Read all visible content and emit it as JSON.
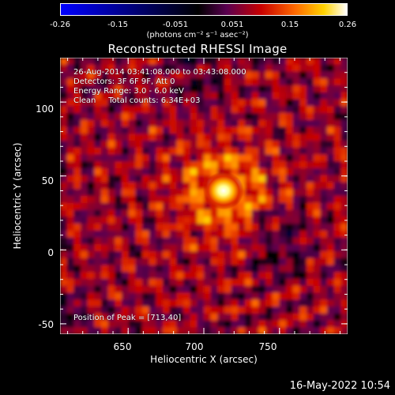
{
  "colorbar": {
    "ticks": [
      "-0.26",
      "-0.15",
      "-0.051",
      "0.051",
      "0.15",
      "0.26"
    ],
    "unit_label": "(photons cm⁻² s⁻¹ asec⁻²)",
    "colormap": [
      "#0000ff",
      "#000000",
      "#5a0050",
      "#c80000",
      "#ff6a00",
      "#ffd200",
      "#ffffff"
    ]
  },
  "chart_data": {
    "type": "heatmap",
    "title": "Reconstructed RHESSI Image",
    "xlabel": "Heliocentric X (arcsec)",
    "ylabel": "Heliocentric Y (arcsec)",
    "xlim": [
      605,
      795
    ],
    "ylim": [
      -57,
      130
    ],
    "x_ticks": [
      "650",
      "700",
      "750"
    ],
    "y_ticks": [
      "-50",
      "0",
      "50",
      "100"
    ],
    "color_range": [
      -0.26,
      0.26
    ],
    "peak": {
      "x": 713,
      "y": 40
    },
    "annotations": {
      "time": "26-Aug-2014 03:41:08.000 to 03:43:08.000",
      "detectors": "Detectors: 3F 6F 9F, Att 0",
      "energy": "Energy Range: 3.0 - 6.0 keV",
      "method": "Clean     Total counts: 6.34E+03",
      "peak_label": "Position of Peak = [713,40]"
    }
  },
  "footer": {
    "date": "16-May-2022 10:54"
  }
}
